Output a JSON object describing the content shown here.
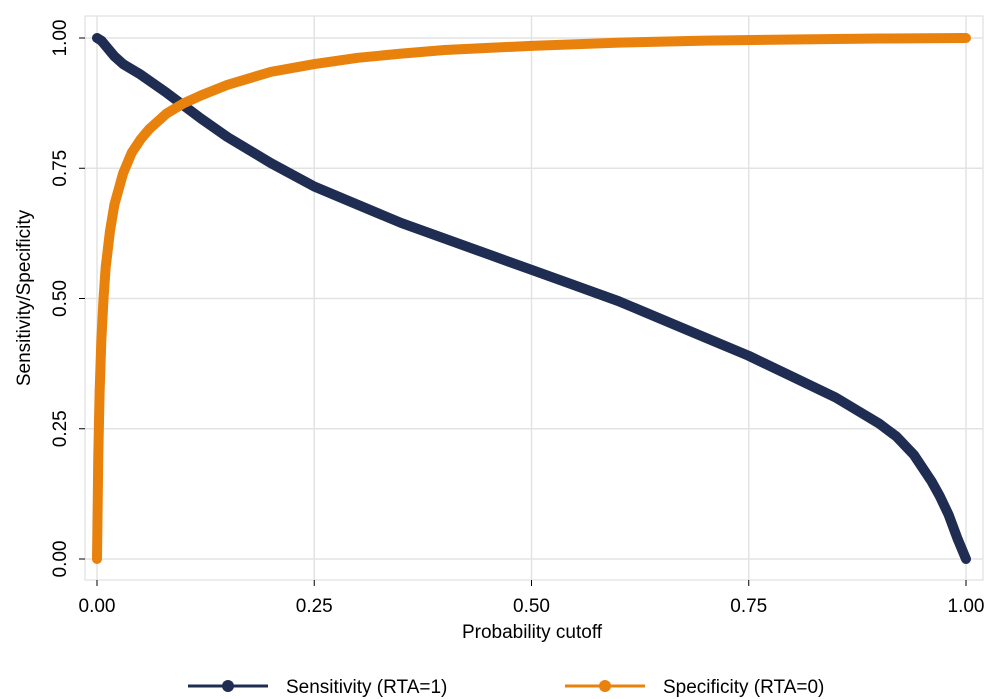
{
  "chart_data": {
    "type": "line",
    "xlabel": "Probability cutoff",
    "ylabel": "Sensitivity/Specificity",
    "xlim": [
      0,
      1
    ],
    "ylim": [
      0,
      1
    ],
    "xticks": [
      0,
      0.25,
      0.5,
      0.75,
      1
    ],
    "yticks": [
      0,
      0.25,
      0.5,
      0.75,
      1
    ],
    "xtick_labels": [
      "0.00",
      "0.25",
      "0.50",
      "0.75",
      "1.00"
    ],
    "ytick_labels": [
      "0.00",
      "0.25",
      "0.50",
      "0.75",
      "1.00"
    ],
    "grid": true,
    "legend_position": "bottom",
    "series": [
      {
        "name": "Sensitivity (RTA=1)",
        "color": "#1f2d52",
        "x": [
          0,
          0.005,
          0.01,
          0.02,
          0.03,
          0.05,
          0.08,
          0.1,
          0.12,
          0.15,
          0.2,
          0.25,
          0.3,
          0.35,
          0.4,
          0.45,
          0.5,
          0.55,
          0.6,
          0.65,
          0.7,
          0.75,
          0.8,
          0.85,
          0.88,
          0.9,
          0.92,
          0.94,
          0.96,
          0.97,
          0.98,
          0.99,
          1.0
        ],
        "y": [
          1.0,
          0.995,
          0.985,
          0.965,
          0.95,
          0.93,
          0.895,
          0.87,
          0.845,
          0.81,
          0.76,
          0.715,
          0.68,
          0.645,
          0.615,
          0.585,
          0.555,
          0.525,
          0.495,
          0.46,
          0.425,
          0.39,
          0.35,
          0.31,
          0.28,
          0.26,
          0.235,
          0.2,
          0.15,
          0.12,
          0.085,
          0.04,
          0.0
        ]
      },
      {
        "name": "Specificity (RTA=0)",
        "color": "#e8820c",
        "x": [
          0,
          0.0015,
          0.003,
          0.005,
          0.0075,
          0.01,
          0.015,
          0.02,
          0.03,
          0.04,
          0.05,
          0.06,
          0.08,
          0.1,
          0.12,
          0.15,
          0.2,
          0.25,
          0.3,
          0.35,
          0.4,
          0.5,
          0.6,
          0.7,
          0.8,
          0.9,
          1.0
        ],
        "y": [
          0.0,
          0.2,
          0.32,
          0.42,
          0.5,
          0.56,
          0.63,
          0.68,
          0.74,
          0.78,
          0.805,
          0.825,
          0.855,
          0.875,
          0.89,
          0.91,
          0.935,
          0.95,
          0.962,
          0.97,
          0.977,
          0.985,
          0.991,
          0.995,
          0.997,
          0.999,
          1.0
        ]
      }
    ]
  }
}
